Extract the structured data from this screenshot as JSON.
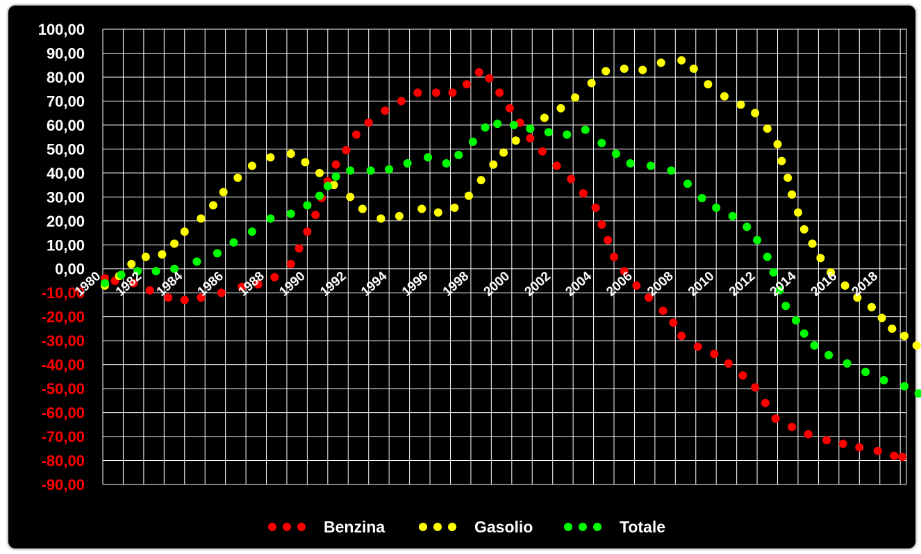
{
  "chart_data": {
    "type": "scatter",
    "title": "",
    "xlabel": "",
    "ylabel": "",
    "xlim": [
      1980,
      2019.3
    ],
    "ylim": [
      -90,
      100
    ],
    "y_ticks": [
      "100,00",
      "90,00",
      "80,00",
      "70,00",
      "60,00",
      "50,00",
      "40,00",
      "30,00",
      "20,00",
      "10,00",
      "0,00",
      "-10,00",
      "-20,00",
      "-30,00",
      "-40,00",
      "-50,00",
      "-60,00",
      "-70,00",
      "-80,00",
      "-90,00"
    ],
    "x_ticks": [
      "1980",
      "1982",
      "1984",
      "1986",
      "1988",
      "1990",
      "1992",
      "1994",
      "1996",
      "1998",
      "2000",
      "2002",
      "2004",
      "2006",
      "2008",
      "2010",
      "2012",
      "2014",
      "2016",
      "2018"
    ],
    "grid": true,
    "legend_position": "bottom",
    "colors": {
      "positive_tick": "#ffffff",
      "negative_tick": "#ff0000",
      "grid": "#ffffff",
      "background": "#000000"
    },
    "series": [
      {
        "name": "Benzina",
        "color": "#ff0000",
        "points": [
          [
            1980.1,
            -4
          ],
          [
            1980.6,
            -5
          ],
          [
            1981.5,
            -6
          ],
          [
            1982.3,
            -9
          ],
          [
            1983.2,
            -12
          ],
          [
            1984.0,
            -13
          ],
          [
            1984.8,
            -12
          ],
          [
            1985.8,
            -10
          ],
          [
            1986.8,
            -7.5
          ],
          [
            1987.6,
            -6.5
          ],
          [
            1988.4,
            -3.5
          ],
          [
            1989.2,
            2
          ],
          [
            1989.6,
            8.5
          ],
          [
            1990.0,
            15.5
          ],
          [
            1990.4,
            22.5
          ],
          [
            1990.7,
            29.5
          ],
          [
            1991.0,
            36.5
          ],
          [
            1991.4,
            43.5
          ],
          [
            1991.9,
            49.5
          ],
          [
            1992.4,
            56
          ],
          [
            1993.0,
            61
          ],
          [
            1993.8,
            66
          ],
          [
            1994.6,
            70
          ],
          [
            1995.4,
            73.5
          ],
          [
            1996.3,
            73.5
          ],
          [
            1997.1,
            73.5
          ],
          [
            1997.8,
            77
          ],
          [
            1998.4,
            82
          ],
          [
            1998.9,
            79.5
          ],
          [
            1999.4,
            73.5
          ],
          [
            1999.9,
            67
          ],
          [
            2000.4,
            61
          ],
          [
            2000.9,
            54.5
          ],
          [
            2001.5,
            49
          ],
          [
            2002.2,
            43
          ],
          [
            2002.9,
            37.5
          ],
          [
            2003.5,
            31.5
          ],
          [
            2004.1,
            25.5
          ],
          [
            2004.4,
            18.5
          ],
          [
            2004.7,
            12
          ],
          [
            2005.0,
            5
          ],
          [
            2005.5,
            -1
          ],
          [
            2006.1,
            -7
          ],
          [
            2006.7,
            -12
          ],
          [
            2007.4,
            -17.5
          ],
          [
            2007.9,
            -22.5
          ],
          [
            2008.3,
            -28
          ],
          [
            2009.1,
            -32.5
          ],
          [
            2009.9,
            -35.5
          ],
          [
            2010.6,
            -39.5
          ],
          [
            2011.3,
            -44.5
          ],
          [
            2011.9,
            -49.5
          ],
          [
            2012.4,
            -56
          ],
          [
            2012.9,
            -62.5
          ],
          [
            2013.7,
            -66
          ],
          [
            2014.5,
            -69
          ],
          [
            2015.4,
            -71.5
          ],
          [
            2016.2,
            -73
          ],
          [
            2017.0,
            -74.5
          ],
          [
            2017.9,
            -76
          ],
          [
            2018.7,
            -78
          ],
          [
            2019.1,
            -78.5
          ]
        ]
      },
      {
        "name": "Gasolio",
        "color": "#ffff00",
        "points": [
          [
            1980.1,
            -7
          ],
          [
            1980.8,
            -3
          ],
          [
            1981.4,
            2
          ],
          [
            1982.1,
            5
          ],
          [
            1982.9,
            6
          ],
          [
            1983.5,
            10.5
          ],
          [
            1984.0,
            15.5
          ],
          [
            1984.8,
            21
          ],
          [
            1985.4,
            26.5
          ],
          [
            1985.9,
            32
          ],
          [
            1986.6,
            38
          ],
          [
            1987.3,
            43
          ],
          [
            1988.2,
            46.5
          ],
          [
            1989.2,
            48
          ],
          [
            1989.9,
            44.5
          ],
          [
            1990.6,
            40
          ],
          [
            1991.3,
            35
          ],
          [
            1992.1,
            30
          ],
          [
            1992.7,
            25
          ],
          [
            1993.6,
            21
          ],
          [
            1994.5,
            22
          ],
          [
            1995.6,
            25
          ],
          [
            1996.4,
            23.5
          ],
          [
            1997.2,
            25.5
          ],
          [
            1997.9,
            30.5
          ],
          [
            1998.5,
            37
          ],
          [
            1999.1,
            43.5
          ],
          [
            1999.6,
            48.5
          ],
          [
            2000.2,
            53.5
          ],
          [
            2000.9,
            58.5
          ],
          [
            2001.6,
            63
          ],
          [
            2002.4,
            67
          ],
          [
            2003.1,
            71.5
          ],
          [
            2003.9,
            77.5
          ],
          [
            2004.6,
            82.5
          ],
          [
            2005.5,
            83.5
          ],
          [
            2006.4,
            83
          ],
          [
            2007.3,
            86
          ],
          [
            2008.3,
            87
          ],
          [
            2008.9,
            83.5
          ],
          [
            2009.6,
            77
          ],
          [
            2010.4,
            72
          ],
          [
            2011.2,
            68.5
          ],
          [
            2011.9,
            65
          ],
          [
            2012.5,
            58.5
          ],
          [
            2013.0,
            52
          ],
          [
            2013.2,
            45
          ],
          [
            2013.5,
            38
          ],
          [
            2013.7,
            31
          ],
          [
            2014.0,
            23.5
          ],
          [
            2014.3,
            16.5
          ],
          [
            2014.7,
            10.5
          ],
          [
            2015.1,
            4.5
          ],
          [
            2015.6,
            -1.5
          ],
          [
            2016.3,
            -7
          ],
          [
            2016.9,
            -12
          ],
          [
            2017.6,
            -16
          ],
          [
            2018.1,
            -20.5
          ],
          [
            2018.6,
            -25
          ],
          [
            2019.2,
            -28
          ],
          [
            2019.8,
            -32
          ]
        ]
      },
      {
        "name": "Totale",
        "color": "#00ff00",
        "points": [
          [
            1980.1,
            -6
          ],
          [
            1980.9,
            -2.5
          ],
          [
            1981.7,
            -1
          ],
          [
            1982.6,
            -1
          ],
          [
            1983.5,
            0
          ],
          [
            1984.6,
            3
          ],
          [
            1985.6,
            6.5
          ],
          [
            1986.4,
            11
          ],
          [
            1987.3,
            15.5
          ],
          [
            1988.2,
            21
          ],
          [
            1989.2,
            23
          ],
          [
            1990.0,
            26.5
          ],
          [
            1990.6,
            30.5
          ],
          [
            1991.0,
            34.5
          ],
          [
            1991.4,
            38.5
          ],
          [
            1992.1,
            41
          ],
          [
            1993.1,
            41
          ],
          [
            1994.0,
            41.5
          ],
          [
            1994.9,
            44
          ],
          [
            1995.9,
            46.5
          ],
          [
            1996.8,
            44
          ],
          [
            1997.4,
            47.5
          ],
          [
            1998.1,
            53
          ],
          [
            1998.7,
            59
          ],
          [
            1999.3,
            60.5
          ],
          [
            2000.1,
            60
          ],
          [
            2000.9,
            58.5
          ],
          [
            2001.8,
            57
          ],
          [
            2002.7,
            56
          ],
          [
            2003.6,
            58
          ],
          [
            2004.4,
            52.5
          ],
          [
            2005.1,
            48
          ],
          [
            2005.8,
            44
          ],
          [
            2006.8,
            43
          ],
          [
            2007.8,
            41
          ],
          [
            2008.6,
            35.5
          ],
          [
            2009.3,
            29.5
          ],
          [
            2010.0,
            25.5
          ],
          [
            2010.8,
            22
          ],
          [
            2011.5,
            17.5
          ],
          [
            2012.0,
            12
          ],
          [
            2012.5,
            5
          ],
          [
            2012.8,
            -1.5
          ],
          [
            2013.1,
            -9
          ],
          [
            2013.4,
            -15.5
          ],
          [
            2013.9,
            -21.5
          ],
          [
            2014.3,
            -27
          ],
          [
            2014.8,
            -32
          ],
          [
            2015.5,
            -36
          ],
          [
            2016.4,
            -39.5
          ],
          [
            2017.3,
            -43
          ],
          [
            2018.2,
            -46.5
          ],
          [
            2019.2,
            -49
          ],
          [
            2019.9,
            -52
          ]
        ]
      }
    ]
  }
}
